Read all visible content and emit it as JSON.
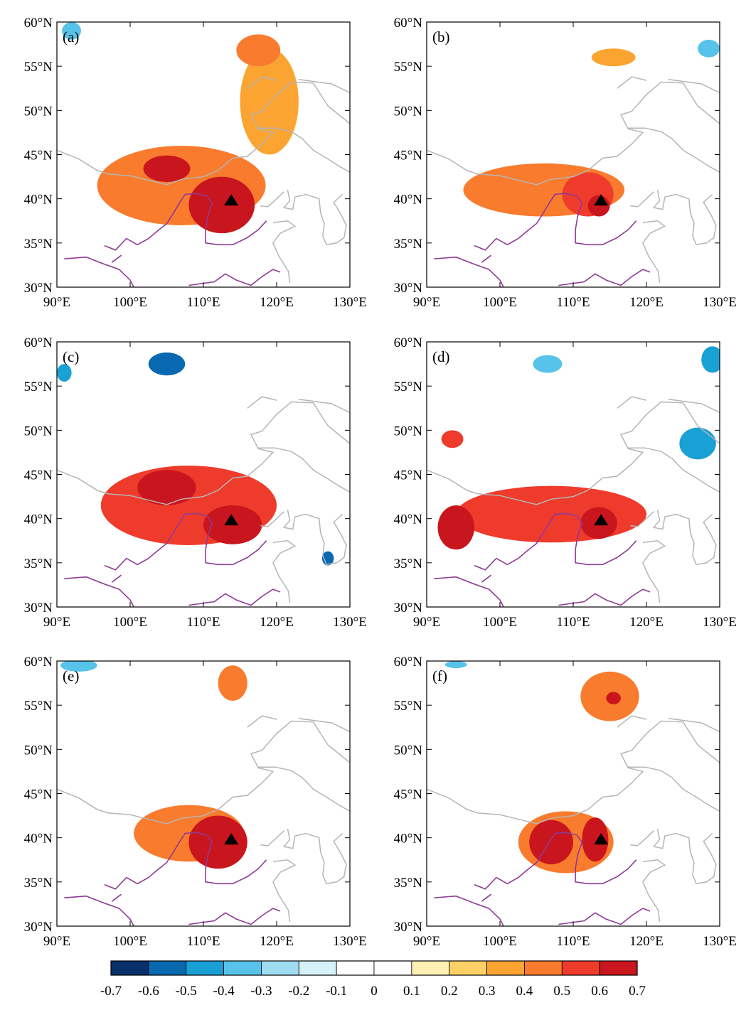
{
  "figure": {
    "x_ticks": [
      "90°E",
      "100°E",
      "110°E",
      "120°E",
      "130°E"
    ],
    "y_ticks": [
      "60°N",
      "55°N",
      "50°N",
      "45°N",
      "40°N",
      "35°N",
      "30°N"
    ],
    "lon_range": [
      90,
      130
    ],
    "lat_range": [
      30,
      60
    ],
    "marker": {
      "name": "station",
      "lon": 113.8,
      "lat": 39.8
    }
  },
  "panels": [
    {
      "label": "(a)",
      "blobs": [
        {
          "lon": 107,
          "lat": 41.5,
          "rx": 11.5,
          "ry": 4.5,
          "level": 0.4
        },
        {
          "lon": 105,
          "lat": 43.4,
          "rx": 3.2,
          "ry": 1.5,
          "level": 0.6
        },
        {
          "lon": 112.5,
          "lat": 39.3,
          "rx": 4.5,
          "ry": 3.2,
          "level": 0.6
        },
        {
          "lon": 112.5,
          "lat": 39.0,
          "rx": 3.0,
          "ry": 2.2,
          "level": 0.7
        },
        {
          "lon": 119,
          "lat": 51,
          "rx": 4,
          "ry": 6,
          "level": 0.3
        },
        {
          "lon": 117.5,
          "lat": 56.8,
          "rx": 3.0,
          "ry": 1.8,
          "level": 0.4
        },
        {
          "lon": 92,
          "lat": 59.0,
          "rx": 1.3,
          "ry": 1.0,
          "level": -0.3
        }
      ]
    },
    {
      "label": "(b)",
      "blobs": [
        {
          "lon": 106,
          "lat": 41,
          "rx": 11,
          "ry": 3.0,
          "level": 0.4
        },
        {
          "lon": 112,
          "lat": 40.5,
          "rx": 3.5,
          "ry": 2.5,
          "level": 0.5
        },
        {
          "lon": 113.5,
          "lat": 39.2,
          "rx": 1.5,
          "ry": 1.2,
          "level": 0.7
        },
        {
          "lon": 115.5,
          "lat": 56.0,
          "rx": 3.0,
          "ry": 1.0,
          "level": 0.3
        },
        {
          "lon": 128.5,
          "lat": 57.0,
          "rx": 1.5,
          "ry": 1.0,
          "level": -0.3
        }
      ]
    },
    {
      "label": "(c)",
      "blobs": [
        {
          "lon": 108,
          "lat": 41.5,
          "rx": 12,
          "ry": 4.5,
          "level": 0.5
        },
        {
          "lon": 105,
          "lat": 43.5,
          "rx": 4.0,
          "ry": 2.0,
          "level": 0.7
        },
        {
          "lon": 114,
          "lat": 39.3,
          "rx": 4.0,
          "ry": 2.2,
          "level": 0.7
        },
        {
          "lon": 105,
          "lat": 57.5,
          "rx": 2.5,
          "ry": 1.3,
          "level": -0.5
        },
        {
          "lon": 91,
          "lat": 56.5,
          "rx": 1.0,
          "ry": 1.0,
          "level": -0.4
        },
        {
          "lon": 127,
          "lat": 35.5,
          "rx": 0.8,
          "ry": 0.8,
          "level": -0.5
        }
      ]
    },
    {
      "label": "(d)",
      "blobs": [
        {
          "lon": 107,
          "lat": 40.5,
          "rx": 13,
          "ry": 3.2,
          "level": 0.5
        },
        {
          "lon": 94,
          "lat": 39.0,
          "rx": 2.5,
          "ry": 2.5,
          "level": 0.6
        },
        {
          "lon": 113.5,
          "lat": 39.5,
          "rx": 2.5,
          "ry": 1.8,
          "level": 0.7
        },
        {
          "lon": 93.5,
          "lat": 49.0,
          "rx": 1.5,
          "ry": 1.0,
          "level": 0.5
        },
        {
          "lon": 127,
          "lat": 48.5,
          "rx": 2.5,
          "ry": 1.8,
          "level": -0.4
        },
        {
          "lon": 106.5,
          "lat": 57.5,
          "rx": 2.0,
          "ry": 1.0,
          "level": -0.3
        },
        {
          "lon": 129,
          "lat": 58.0,
          "rx": 1.5,
          "ry": 1.5,
          "level": -0.4
        }
      ]
    },
    {
      "label": "(e)",
      "blobs": [
        {
          "lon": 108,
          "lat": 40.5,
          "rx": 7.5,
          "ry": 3.2,
          "level": 0.4
        },
        {
          "lon": 112,
          "lat": 39.5,
          "rx": 4.0,
          "ry": 3.0,
          "level": 0.6
        },
        {
          "lon": 112.5,
          "lat": 39.3,
          "rx": 2.8,
          "ry": 2.2,
          "level": 0.7
        },
        {
          "lon": 114,
          "lat": 57.5,
          "rx": 2.0,
          "ry": 2.0,
          "level": 0.4
        },
        {
          "lon": 93,
          "lat": 59.5,
          "rx": 2.5,
          "ry": 0.7,
          "level": -0.3
        }
      ]
    },
    {
      "label": "(f)",
      "blobs": [
        {
          "lon": 109,
          "lat": 39.5,
          "rx": 6.5,
          "ry": 3.5,
          "level": 0.4
        },
        {
          "lon": 107,
          "lat": 39.5,
          "rx": 3.0,
          "ry": 2.5,
          "level": 0.6
        },
        {
          "lon": 113,
          "lat": 39.8,
          "rx": 1.8,
          "ry": 2.5,
          "level": 0.6
        },
        {
          "lon": 115,
          "lat": 56.0,
          "rx": 4.0,
          "ry": 2.8,
          "level": 0.4
        },
        {
          "lon": 115.5,
          "lat": 55.8,
          "rx": 1.0,
          "ry": 0.7,
          "level": 0.6
        },
        {
          "lon": 94,
          "lat": 59.6,
          "rx": 1.5,
          "ry": 0.4,
          "level": -0.3
        }
      ]
    }
  ],
  "colorbar": {
    "labels": [
      "-0.7",
      "-0.6",
      "-0.5",
      "-0.4",
      "-0.3",
      "-0.2",
      "-0.1",
      "0",
      "0.1",
      "0.2",
      "0.3",
      "0.4",
      "0.5",
      "0.6",
      "0.7"
    ],
    "colors": [
      "#08306b",
      "#0868b0",
      "#19a0d5",
      "#57c3ea",
      "#9fdcf2",
      "#d7f1fa",
      "#ffffff",
      "#ffffff",
      "#fff0b3",
      "#fdd166",
      "#fca431",
      "#f97b2d",
      "#ef3b2c",
      "#c9151d"
    ]
  },
  "colors": {
    "border": "#b5b5b5",
    "river": "#8e3a96",
    "frame": "#000000"
  }
}
